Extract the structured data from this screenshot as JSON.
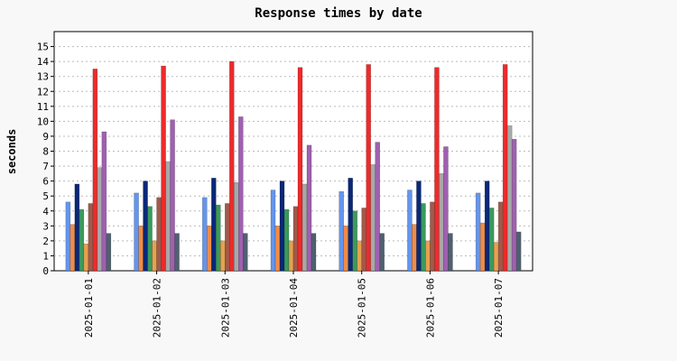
{
  "chart_data": {
    "type": "bar",
    "title": "Response times by date",
    "xlabel": "",
    "ylabel": "seconds",
    "ylim": [
      0,
      16
    ],
    "yticks": [
      0,
      1,
      2,
      3,
      4,
      5,
      6,
      7,
      8,
      9,
      10,
      11,
      12,
      13,
      14,
      15
    ],
    "grid": true,
    "categories": [
      "2025-01-01",
      "2025-01-02",
      "2025-01-03",
      "2025-01-04",
      "2025-01-05",
      "2025-01-06",
      "2025-01-07"
    ],
    "series": [
      {
        "color": "#6495ed",
        "values": [
          4.6,
          5.2,
          4.9,
          5.4,
          5.3,
          5.4,
          5.2
        ]
      },
      {
        "color": "#f08c46",
        "values": [
          3.1,
          3.0,
          3.0,
          3.0,
          3.0,
          3.1,
          3.2
        ]
      },
      {
        "color": "#0a2878",
        "values": [
          5.8,
          6.0,
          6.2,
          6.0,
          6.2,
          6.0,
          6.0
        ]
      },
      {
        "color": "#3a9a5c",
        "values": [
          4.1,
          4.3,
          4.4,
          4.1,
          4.0,
          4.5,
          4.2
        ]
      },
      {
        "color": "#e8a050",
        "values": [
          1.8,
          2.0,
          2.0,
          2.0,
          2.0,
          2.0,
          1.9
        ]
      },
      {
        "color": "#a05a4a",
        "values": [
          4.5,
          4.9,
          4.5,
          4.3,
          4.2,
          4.6,
          4.6
        ]
      },
      {
        "color": "#ee2a2a",
        "values": [
          13.5,
          13.7,
          14.0,
          13.6,
          13.8,
          13.6,
          13.8
        ]
      },
      {
        "color": "#a8a8a8",
        "values": [
          6.9,
          7.3,
          5.9,
          5.8,
          7.1,
          6.5,
          9.7
        ]
      },
      {
        "color": "#a060b0",
        "values": [
          9.3,
          10.1,
          10.3,
          8.4,
          8.6,
          8.3,
          8.8
        ]
      },
      {
        "color": "#506070",
        "values": [
          2.5,
          2.5,
          2.5,
          2.5,
          2.5,
          2.5,
          2.6
        ]
      }
    ]
  }
}
